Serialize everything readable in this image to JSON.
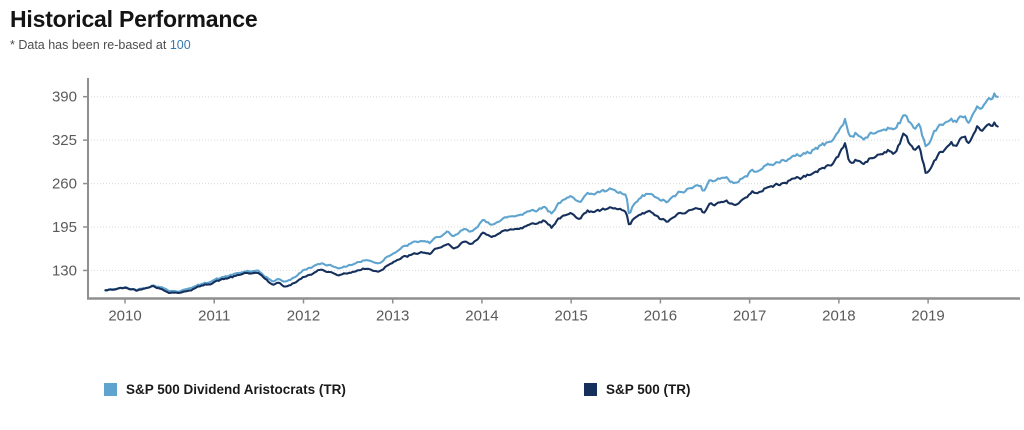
{
  "header": {
    "title": "Historical Performance",
    "note_prefix": "* Data has been re-based at ",
    "note_value": "100"
  },
  "colors": {
    "title": "#141414",
    "note_text": "#4d4d4d",
    "note_value": "#3579b1",
    "axis_line": "#8f8f8f",
    "tick_label": "#5a5a5a",
    "gridline": "#d8d8d8",
    "series_aristocrats": "#5fa4cf",
    "series_sp500": "#16305c"
  },
  "legend": [
    {
      "label": "S&P 500 Dividend Aristocrats (TR)",
      "color": "#5fa4cf"
    },
    {
      "label": "S&P 500 (TR)",
      "color": "#16305c"
    }
  ],
  "chart_data": {
    "type": "line",
    "title": "Historical Performance",
    "note": "* Data has been re-based at 100",
    "xlabel": "",
    "ylabel": "",
    "x_unit": "year (data approx. Oct 2009 - Oct 2019, rebased to 100)",
    "x_ticks": [
      2010,
      2011,
      2012,
      2013,
      2014,
      2015,
      2016,
      2017,
      2018,
      2019
    ],
    "y_ticks": [
      130,
      195,
      260,
      325,
      390
    ],
    "xlim": [
      2009.585,
      2020.03
    ],
    "ylim": [
      89.5,
      407.5
    ],
    "grid": "horizontal-dotted",
    "legend_position": "bottom",
    "series": [
      {
        "name": "S&P 500 Dividend Aristocrats (TR)",
        "color": "#5fa4cf",
        "points": [
          [
            2009.78,
            100
          ],
          [
            2009.92,
            103
          ],
          [
            2010.0,
            104.5
          ],
          [
            2010.13,
            101
          ],
          [
            2010.32,
            108
          ],
          [
            2010.5,
            100
          ],
          [
            2010.62,
            99
          ],
          [
            2010.75,
            105
          ],
          [
            2010.9,
            111
          ],
          [
            2011.0,
            116
          ],
          [
            2011.15,
            121
          ],
          [
            2011.35,
            128.5
          ],
          [
            2011.5,
            128
          ],
          [
            2011.58,
            121
          ],
          [
            2011.65,
            113
          ],
          [
            2011.72,
            117
          ],
          [
            2011.79,
            112
          ],
          [
            2011.9,
            120
          ],
          [
            2012.0,
            130
          ],
          [
            2012.2,
            140
          ],
          [
            2012.3,
            138
          ],
          [
            2012.42,
            134
          ],
          [
            2012.6,
            142
          ],
          [
            2012.7,
            145
          ],
          [
            2012.85,
            141
          ],
          [
            2012.95,
            152
          ],
          [
            2013.0,
            156
          ],
          [
            2013.2,
            170
          ],
          [
            2013.35,
            174
          ],
          [
            2013.42,
            170
          ],
          [
            2013.5,
            181
          ],
          [
            2013.62,
            186
          ],
          [
            2013.68,
            179
          ],
          [
            2013.8,
            191
          ],
          [
            2013.88,
            187
          ],
          [
            2014.0,
            204
          ],
          [
            2014.1,
            199
          ],
          [
            2014.25,
            208
          ],
          [
            2014.4,
            212
          ],
          [
            2014.55,
            220
          ],
          [
            2014.7,
            225
          ],
          [
            2014.78,
            216
          ],
          [
            2014.85,
            230
          ],
          [
            2014.95,
            237
          ],
          [
            2015.0,
            240
          ],
          [
            2015.1,
            235
          ],
          [
            2015.18,
            244
          ],
          [
            2015.3,
            247
          ],
          [
            2015.45,
            250
          ],
          [
            2015.55,
            246
          ],
          [
            2015.62,
            242
          ],
          [
            2015.65,
            208
          ],
          [
            2015.7,
            228
          ],
          [
            2015.8,
            240
          ],
          [
            2015.88,
            246
          ],
          [
            2015.95,
            238
          ],
          [
            2016.08,
            231
          ],
          [
            2016.12,
            236
          ],
          [
            2016.2,
            245
          ],
          [
            2016.35,
            253
          ],
          [
            2016.45,
            259
          ],
          [
            2016.48,
            251
          ],
          [
            2016.55,
            263
          ],
          [
            2016.65,
            268
          ],
          [
            2016.75,
            266
          ],
          [
            2016.85,
            261
          ],
          [
            2016.95,
            271
          ],
          [
            2017.0,
            277
          ],
          [
            2017.15,
            285
          ],
          [
            2017.3,
            291
          ],
          [
            2017.45,
            297
          ],
          [
            2017.6,
            303
          ],
          [
            2017.75,
            313
          ],
          [
            2017.9,
            323
          ],
          [
            2018.0,
            338
          ],
          [
            2018.07,
            357
          ],
          [
            2018.12,
            331
          ],
          [
            2018.2,
            334
          ],
          [
            2018.28,
            326
          ],
          [
            2018.4,
            336
          ],
          [
            2018.55,
            345
          ],
          [
            2018.62,
            341
          ],
          [
            2018.73,
            363
          ],
          [
            2018.8,
            352
          ],
          [
            2018.85,
            343
          ],
          [
            2018.9,
            351
          ],
          [
            2018.98,
            315
          ],
          [
            2019.0,
            319
          ],
          [
            2019.1,
            341
          ],
          [
            2019.25,
            356
          ],
          [
            2019.32,
            352
          ],
          [
            2019.4,
            362
          ],
          [
            2019.45,
            351
          ],
          [
            2019.55,
            375
          ],
          [
            2019.6,
            367
          ],
          [
            2019.7,
            384
          ],
          [
            2019.75,
            392
          ],
          [
            2019.79,
            388
          ]
        ]
      },
      {
        "name": "S&P 500 (TR)",
        "color": "#16305c",
        "points": [
          [
            2009.78,
            100
          ],
          [
            2009.92,
            102.5
          ],
          [
            2010.0,
            104
          ],
          [
            2010.13,
            100.5
          ],
          [
            2010.32,
            107
          ],
          [
            2010.5,
            97
          ],
          [
            2010.62,
            96.5
          ],
          [
            2010.75,
            102
          ],
          [
            2010.9,
            108
          ],
          [
            2011.0,
            113
          ],
          [
            2011.15,
            118
          ],
          [
            2011.35,
            126
          ],
          [
            2011.5,
            125
          ],
          [
            2011.58,
            117
          ],
          [
            2011.65,
            108
          ],
          [
            2011.72,
            112
          ],
          [
            2011.79,
            105
          ],
          [
            2011.9,
            112
          ],
          [
            2012.0,
            120
          ],
          [
            2012.2,
            131
          ],
          [
            2012.3,
            128
          ],
          [
            2012.42,
            123
          ],
          [
            2012.6,
            130
          ],
          [
            2012.7,
            133
          ],
          [
            2012.85,
            128
          ],
          [
            2012.95,
            139
          ],
          [
            2013.0,
            143
          ],
          [
            2013.2,
            153
          ],
          [
            2013.35,
            157
          ],
          [
            2013.42,
            153
          ],
          [
            2013.5,
            164
          ],
          [
            2013.62,
            168
          ],
          [
            2013.68,
            161
          ],
          [
            2013.8,
            172
          ],
          [
            2013.88,
            168
          ],
          [
            2014.0,
            186
          ],
          [
            2014.1,
            181
          ],
          [
            2014.25,
            189
          ],
          [
            2014.4,
            193
          ],
          [
            2014.55,
            200
          ],
          [
            2014.7,
            204
          ],
          [
            2014.78,
            195
          ],
          [
            2014.85,
            207
          ],
          [
            2014.95,
            212
          ],
          [
            2015.0,
            215
          ],
          [
            2015.1,
            210
          ],
          [
            2015.18,
            218
          ],
          [
            2015.3,
            220
          ],
          [
            2015.45,
            223
          ],
          [
            2015.55,
            220
          ],
          [
            2015.62,
            216
          ],
          [
            2015.65,
            194
          ],
          [
            2015.7,
            206
          ],
          [
            2015.8,
            214
          ],
          [
            2015.88,
            219
          ],
          [
            2015.95,
            211
          ],
          [
            2016.08,
            202
          ],
          [
            2016.12,
            206
          ],
          [
            2016.2,
            214
          ],
          [
            2016.35,
            220
          ],
          [
            2016.45,
            224
          ],
          [
            2016.48,
            218
          ],
          [
            2016.55,
            228
          ],
          [
            2016.65,
            233
          ],
          [
            2016.75,
            231
          ],
          [
            2016.85,
            229
          ],
          [
            2016.95,
            239
          ],
          [
            2017.0,
            244
          ],
          [
            2017.15,
            252
          ],
          [
            2017.3,
            258
          ],
          [
            2017.45,
            264
          ],
          [
            2017.6,
            270
          ],
          [
            2017.75,
            278
          ],
          [
            2017.9,
            288
          ],
          [
            2018.0,
            302
          ],
          [
            2018.07,
            322
          ],
          [
            2018.12,
            292
          ],
          [
            2018.2,
            297
          ],
          [
            2018.28,
            289
          ],
          [
            2018.4,
            299
          ],
          [
            2018.55,
            309
          ],
          [
            2018.62,
            305
          ],
          [
            2018.73,
            334
          ],
          [
            2018.8,
            320
          ],
          [
            2018.85,
            309
          ],
          [
            2018.9,
            317
          ],
          [
            2018.98,
            273
          ],
          [
            2019.0,
            277
          ],
          [
            2019.1,
            299
          ],
          [
            2019.25,
            321
          ],
          [
            2019.32,
            317
          ],
          [
            2019.4,
            331
          ],
          [
            2019.45,
            319
          ],
          [
            2019.55,
            342
          ],
          [
            2019.6,
            334
          ],
          [
            2019.7,
            347
          ],
          [
            2019.75,
            352
          ],
          [
            2019.79,
            347
          ]
        ]
      }
    ]
  }
}
